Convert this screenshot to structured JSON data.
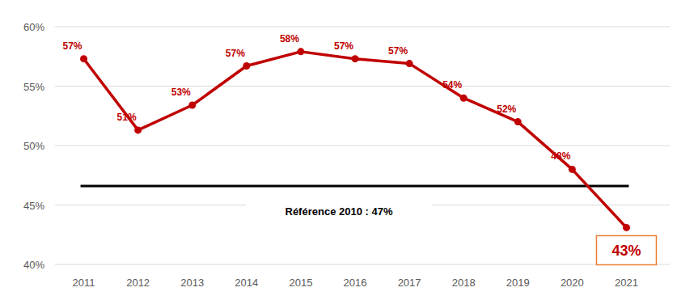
{
  "chart_data": {
    "type": "line",
    "categories": [
      "2011",
      "2012",
      "2013",
      "2014",
      "2015",
      "2016",
      "2017",
      "2018",
      "2019",
      "2020",
      "2021"
    ],
    "values": [
      57.3,
      51.3,
      53.4,
      56.7,
      57.9,
      57.3,
      56.9,
      54.0,
      52.0,
      48.0,
      43.1
    ],
    "value_labels": [
      "57%",
      "51%",
      "53%",
      "57%",
      "58%",
      "57%",
      "57%",
      "54%",
      "52%",
      "48%",
      "43%"
    ],
    "color": "#c00000",
    "marker": "circle",
    "data_labels": true,
    "grid": true,
    "ylim": [
      40,
      60
    ],
    "yticks": [
      {
        "value": 40,
        "label": "40%"
      },
      {
        "value": 45,
        "label": "45%"
      },
      {
        "value": 50,
        "label": "50%"
      },
      {
        "value": 55,
        "label": "55%"
      },
      {
        "value": 60,
        "label": "60%"
      }
    ],
    "annotations": [
      {
        "text": "Référence 2010 : 47%",
        "y": 46.6
      }
    ]
  }
}
